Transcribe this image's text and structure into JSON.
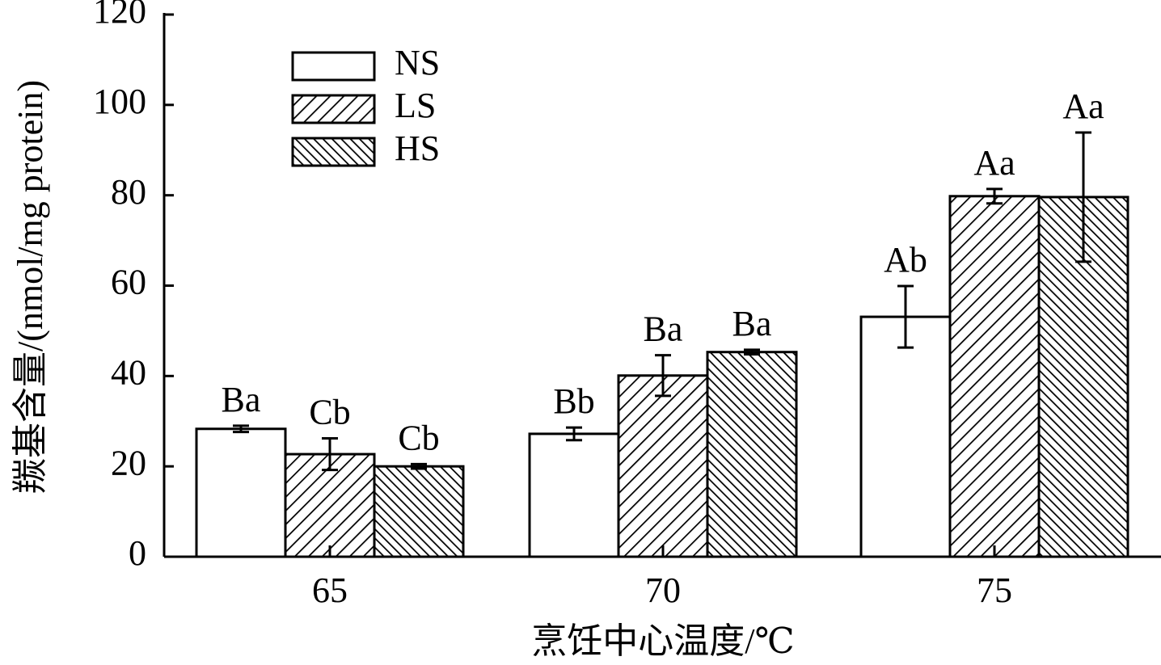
{
  "chart_data": {
    "type": "bar",
    "x_label": "烹饪中心温度/℃",
    "y_label": "羰基含量/(nmol/mg protein)",
    "categories": [
      "65",
      "70",
      "75"
    ],
    "series": [
      {
        "name": "NS",
        "color": "#ffffff",
        "hatch": "none",
        "values": [
          28.3,
          27.2,
          53.1
        ],
        "errors": [
          0.7,
          1.4,
          6.8
        ],
        "letters": [
          "Ba",
          "Bb",
          "Ab"
        ]
      },
      {
        "name": "LS",
        "color": "#ffffff",
        "hatch": "/",
        "values": [
          22.7,
          40.1,
          79.8
        ],
        "errors": [
          3.5,
          4.5,
          1.6
        ],
        "letters": [
          "Cb",
          "Ba",
          "Aa"
        ]
      },
      {
        "name": "HS",
        "color": "#ffffff",
        "hatch": "\\",
        "values": [
          20.0,
          45.3,
          79.6
        ],
        "errors": [
          0.5,
          0.5,
          14.3
        ],
        "letters": [
          "Cb",
          "Ba",
          "Aa"
        ]
      }
    ],
    "ylim": [
      0,
      120
    ],
    "yticks": [
      0,
      20,
      40,
      60,
      80,
      100,
      120
    ],
    "grid": false,
    "legend": "top-left"
  }
}
